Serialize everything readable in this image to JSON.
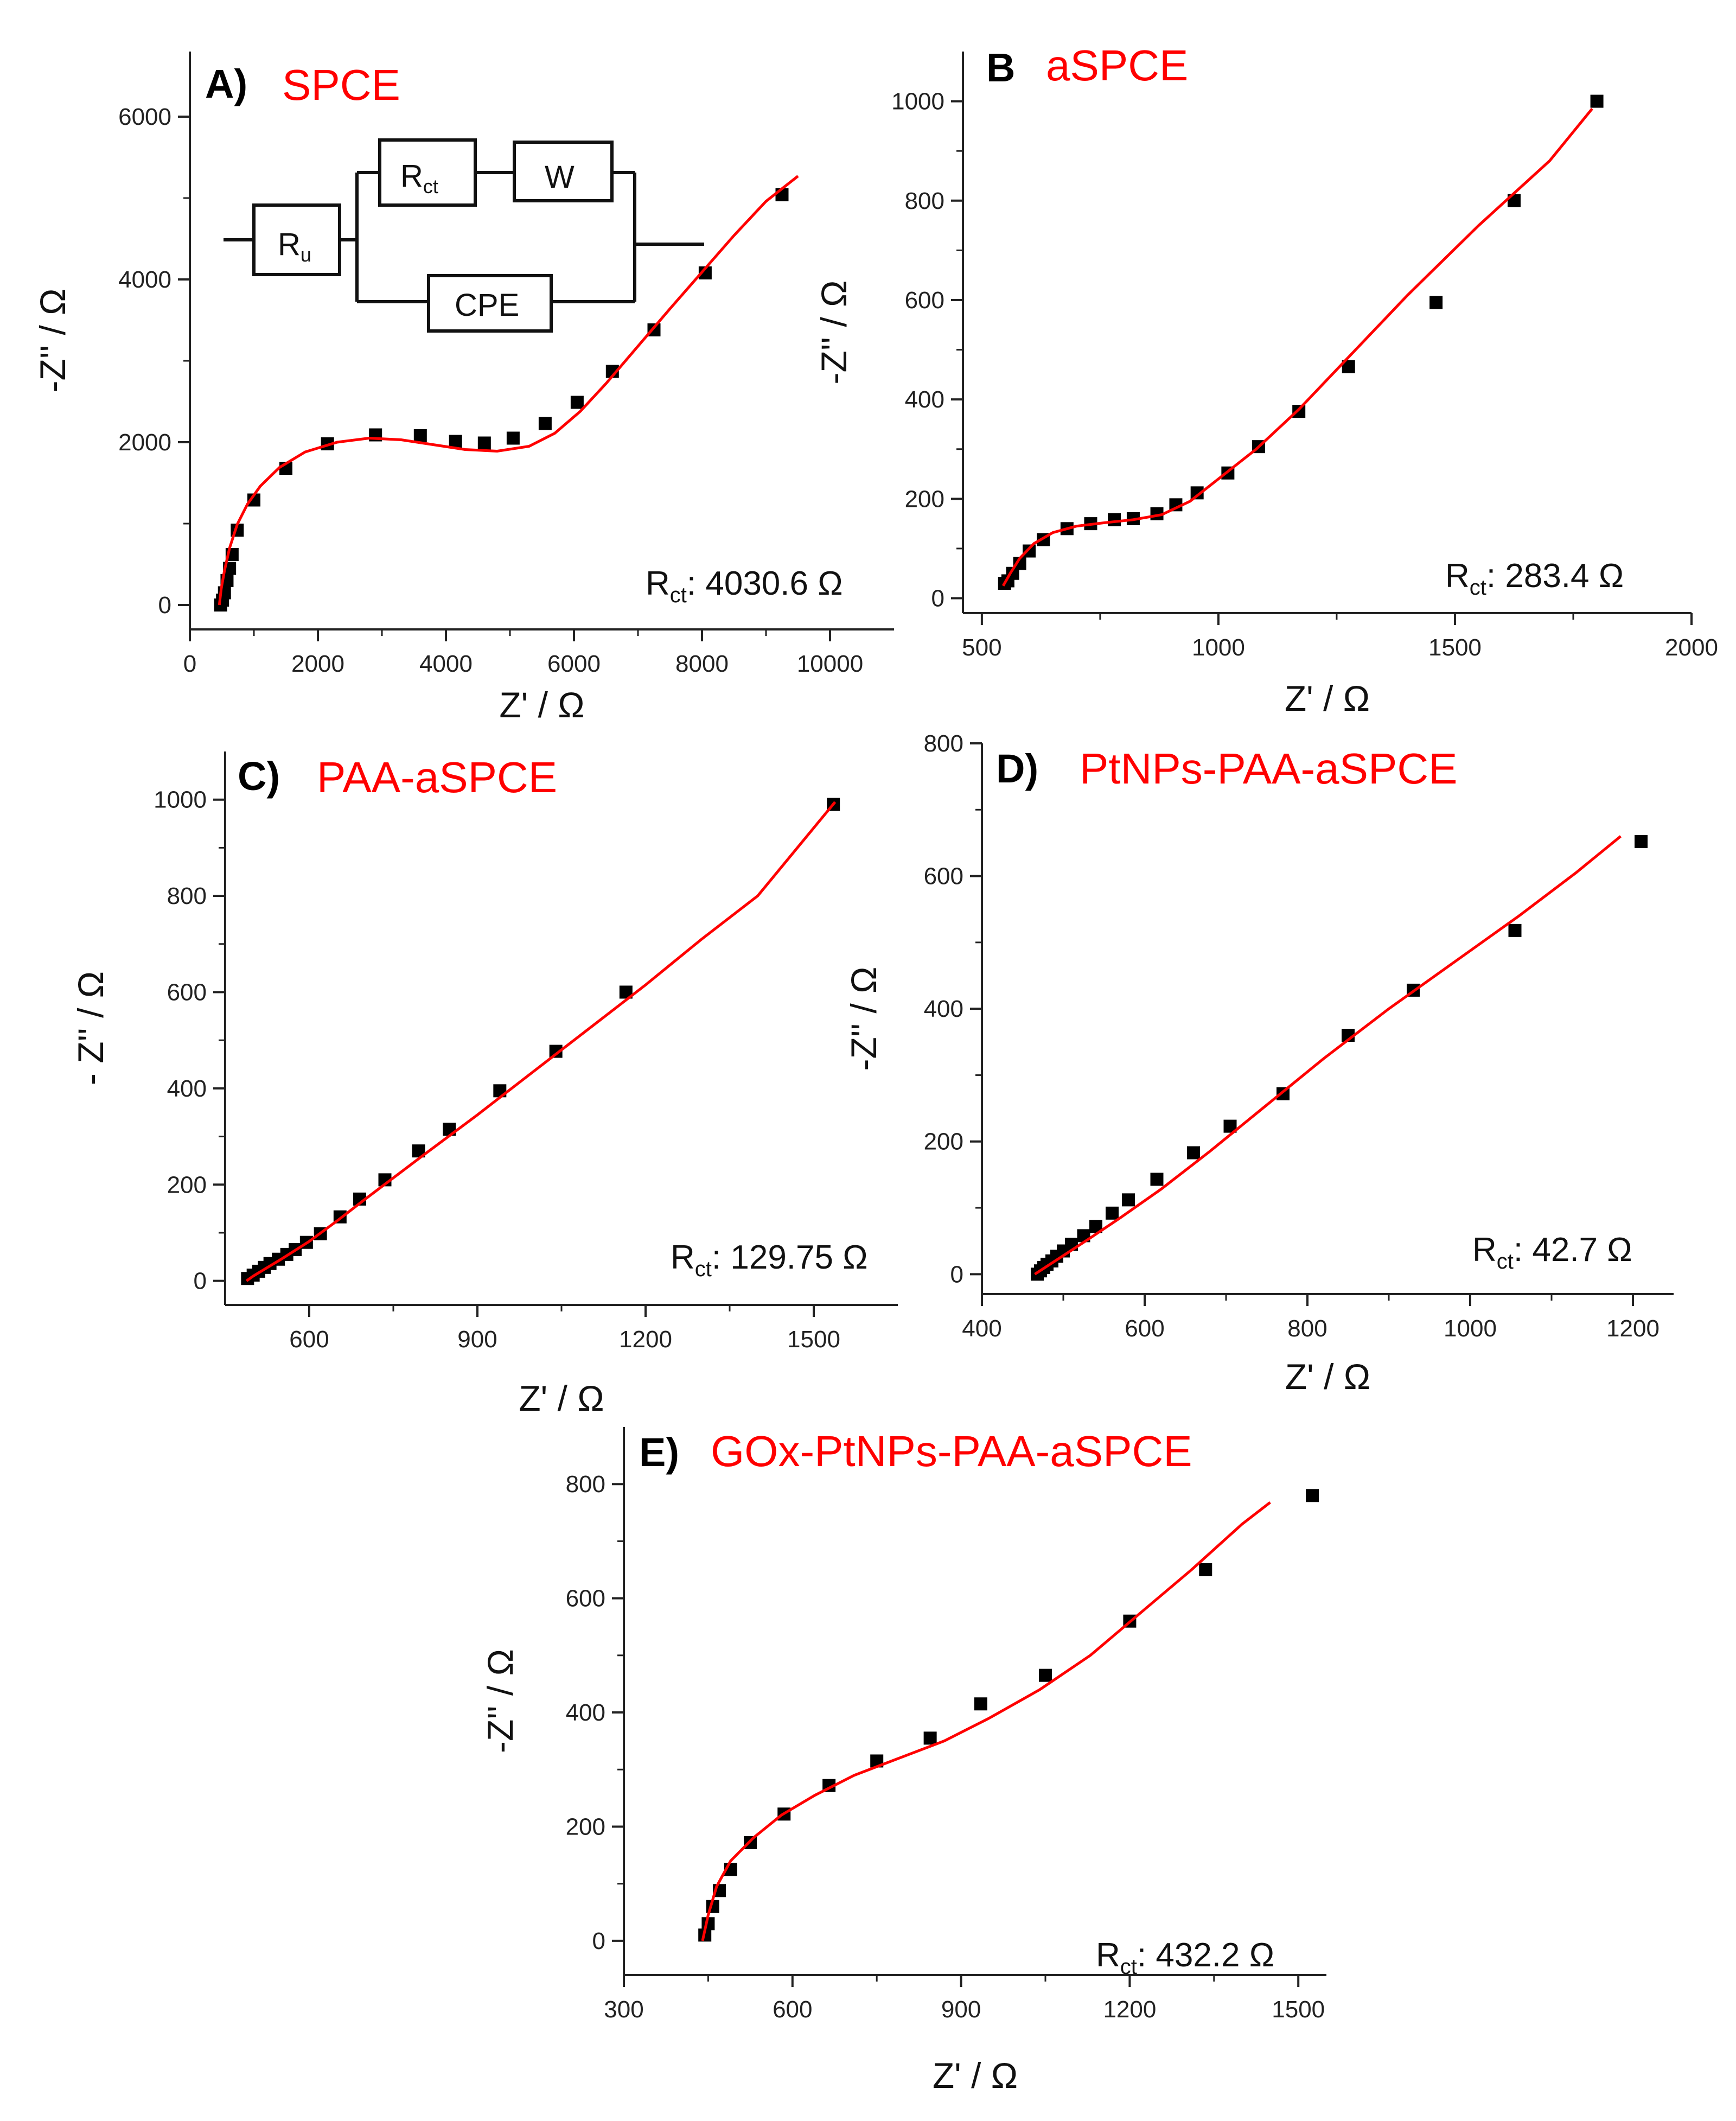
{
  "colors": {
    "fit": "#ff0000",
    "points": "#000000",
    "axis": "#222222",
    "label": "#ff0000"
  },
  "circuit": {
    "ru": "R",
    "ru_sub": "u",
    "rct": "R",
    "rct_sub": "ct",
    "w": "W",
    "cpe": "CPE"
  },
  "chart_data": [
    {
      "type": "scatter",
      "panel_letter": "A)",
      "title": "SPCE",
      "xlabel": "Z' / Ω",
      "ylabel": "-Z'' / Ω",
      "xlim": [
        0,
        11000
      ],
      "ylim": [
        -300,
        6800
      ],
      "xticks": [
        0,
        2000,
        4000,
        6000,
        8000,
        10000
      ],
      "yticks": [
        0,
        2000,
        4000,
        6000
      ],
      "rct_prefix": "R",
      "rct_sub": "ct",
      "rct_value": ": 4030.6 Ω",
      "series": [
        {
          "kind": "points",
          "x": [
            480,
            510,
            540,
            580,
            620,
            660,
            740,
            1000,
            1500,
            2150,
            2900,
            3600,
            4150,
            4600,
            5050,
            5550,
            6050,
            6600,
            7250,
            8050,
            9250
          ],
          "y": [
            0,
            60,
            150,
            300,
            450,
            620,
            920,
            1290,
            1680,
            1980,
            2090,
            2080,
            2010,
            1990,
            2050,
            2230,
            2490,
            2870,
            3380,
            4080,
            5040
          ]
        },
        {
          "kind": "fit",
          "x": [
            460,
            490,
            540,
            620,
            740,
            900,
            1100,
            1400,
            1800,
            2300,
            2800,
            3300,
            3800,
            4300,
            4800,
            5300,
            5700,
            6100,
            6500,
            7000,
            7500,
            8000,
            8500,
            9000,
            9500
          ],
          "y": [
            0,
            200,
            420,
            700,
            990,
            1240,
            1460,
            1690,
            1880,
            2000,
            2050,
            2030,
            1970,
            1910,
            1890,
            1950,
            2110,
            2380,
            2720,
            3180,
            3640,
            4090,
            4540,
            4960,
            5270
          ]
        }
      ]
    },
    {
      "type": "scatter",
      "panel_letter": "B",
      "title": "aSPCE",
      "xlabel": "Z' / Ω",
      "ylabel": "-Z'' / Ω",
      "xlim": [
        460,
        2000
      ],
      "ylim": [
        -30,
        1100
      ],
      "xticks": [
        500,
        1000,
        1500,
        2000
      ],
      "yticks": [
        0,
        200,
        400,
        600,
        800,
        1000
      ],
      "rct_prefix": "R",
      "rct_sub": "ct",
      "rct_value": ": 283.4 Ω",
      "series": [
        {
          "kind": "points",
          "x": [
            548,
            555,
            565,
            580,
            600,
            630,
            680,
            730,
            780,
            820,
            870,
            910,
            955,
            1020,
            1085,
            1170,
            1275,
            1460,
            1625,
            1800
          ],
          "y": [
            30,
            35,
            50,
            70,
            95,
            118,
            140,
            150,
            158,
            160,
            170,
            188,
            212,
            252,
            305,
            376,
            466,
            595,
            800,
            1000
          ]
        },
        {
          "kind": "fit",
          "x": [
            545,
            560,
            580,
            610,
            650,
            700,
            760,
            820,
            880,
            940,
            1000,
            1080,
            1170,
            1270,
            1400,
            1550,
            1700,
            1790
          ],
          "y": [
            25,
            50,
            80,
            110,
            132,
            145,
            152,
            158,
            168,
            195,
            240,
            300,
            380,
            480,
            610,
            750,
            880,
            985
          ]
        }
      ]
    },
    {
      "type": "scatter",
      "panel_letter": "C)",
      "title": "PAA-aSPCE",
      "xlabel": "Z' / Ω",
      "ylabel": "- Z'' / Ω",
      "xlim": [
        450,
        1650
      ],
      "ylim": [
        -50,
        1100
      ],
      "xticks": [
        600,
        900,
        1200,
        1500
      ],
      "yticks": [
        0,
        200,
        400,
        600,
        800,
        1000
      ],
      "rct_prefix": "R",
      "rct_sub": "ct",
      "rct_value": ": 129.75 Ω",
      "series": [
        {
          "kind": "points",
          "x": [
            490,
            500,
            510,
            520,
            530,
            545,
            560,
            575,
            595,
            620,
            655,
            690,
            735,
            795,
            850,
            940,
            1040,
            1165,
            1535
          ],
          "y": [
            5,
            12,
            20,
            28,
            36,
            45,
            55,
            65,
            80,
            98,
            133,
            170,
            210,
            270,
            315,
            395,
            477,
            600,
            990
          ]
        },
        {
          "kind": "fit",
          "x": [
            488,
            500,
            520,
            550,
            600,
            650,
            700,
            800,
            900,
            1000,
            1100,
            1200,
            1300,
            1400,
            1538
          ],
          "y": [
            0,
            10,
            24,
            45,
            82,
            125,
            170,
            258,
            345,
            435,
            525,
            615,
            710,
            800,
            995
          ]
        }
      ]
    },
    {
      "type": "scatter",
      "panel_letter": "D)",
      "title": "PtNPs-PAA-aSPCE",
      "xlabel": "Z' / Ω",
      "ylabel": "-Z'' / Ω",
      "xlim": [
        400,
        1250
      ],
      "ylim": [
        -30,
        800
      ],
      "xticks": [
        400,
        600,
        800,
        1000,
        1200
      ],
      "yticks": [
        0,
        200,
        400,
        600,
        800
      ],
      "rct_prefix": "R",
      "rct_sub": "ct",
      "rct_value": ": 42.7 Ω",
      "series": [
        {
          "kind": "points",
          "x": [
            468,
            472,
            476,
            480,
            486,
            492,
            500,
            510,
            525,
            540,
            560,
            580,
            615,
            660,
            705,
            770,
            850,
            930,
            1055,
            1210
          ],
          "y": [
            0,
            5,
            10,
            15,
            20,
            27,
            35,
            45,
            58,
            72,
            92,
            112,
            143,
            183,
            223,
            272,
            360,
            428,
            518,
            652
          ]
        },
        {
          "kind": "fit",
          "x": [
            465,
            480,
            500,
            530,
            570,
            620,
            680,
            750,
            820,
            900,
            980,
            1060,
            1130,
            1185
          ],
          "y": [
            0,
            12,
            28,
            52,
            85,
            128,
            185,
            255,
            325,
            400,
            470,
            540,
            605,
            660
          ]
        }
      ]
    },
    {
      "type": "scatter",
      "panel_letter": "E)",
      "title": "GOx-PtNPs-PAA-aSPCE",
      "xlabel": "Z' / Ω",
      "ylabel": "-Z'' / Ω",
      "xlim": [
        300,
        1550
      ],
      "ylim": [
        -60,
        900
      ],
      "xticks": [
        300,
        600,
        900,
        1200,
        1500
      ],
      "yticks": [
        0,
        200,
        400,
        600,
        800
      ],
      "rct_prefix": "R",
      "rct_sub": "ct",
      "rct_value": ": 432.2 Ω",
      "series": [
        {
          "kind": "points",
          "x": [
            444,
            450,
            458,
            470,
            490,
            525,
            585,
            665,
            750,
            845,
            935,
            1050,
            1200,
            1335,
            1525
          ],
          "y": [
            10,
            30,
            60,
            88,
            125,
            172,
            222,
            272,
            315,
            355,
            415,
            465,
            560,
            650,
            780
          ]
        },
        {
          "kind": "fit",
          "x": [
            440,
            450,
            465,
            490,
            530,
            580,
            640,
            710,
            790,
            870,
            950,
            1040,
            1130,
            1220,
            1310,
            1400,
            1450
          ],
          "y": [
            0,
            45,
            95,
            140,
            180,
            220,
            255,
            290,
            320,
            350,
            390,
            440,
            500,
            575,
            650,
            730,
            768
          ]
        }
      ]
    }
  ]
}
